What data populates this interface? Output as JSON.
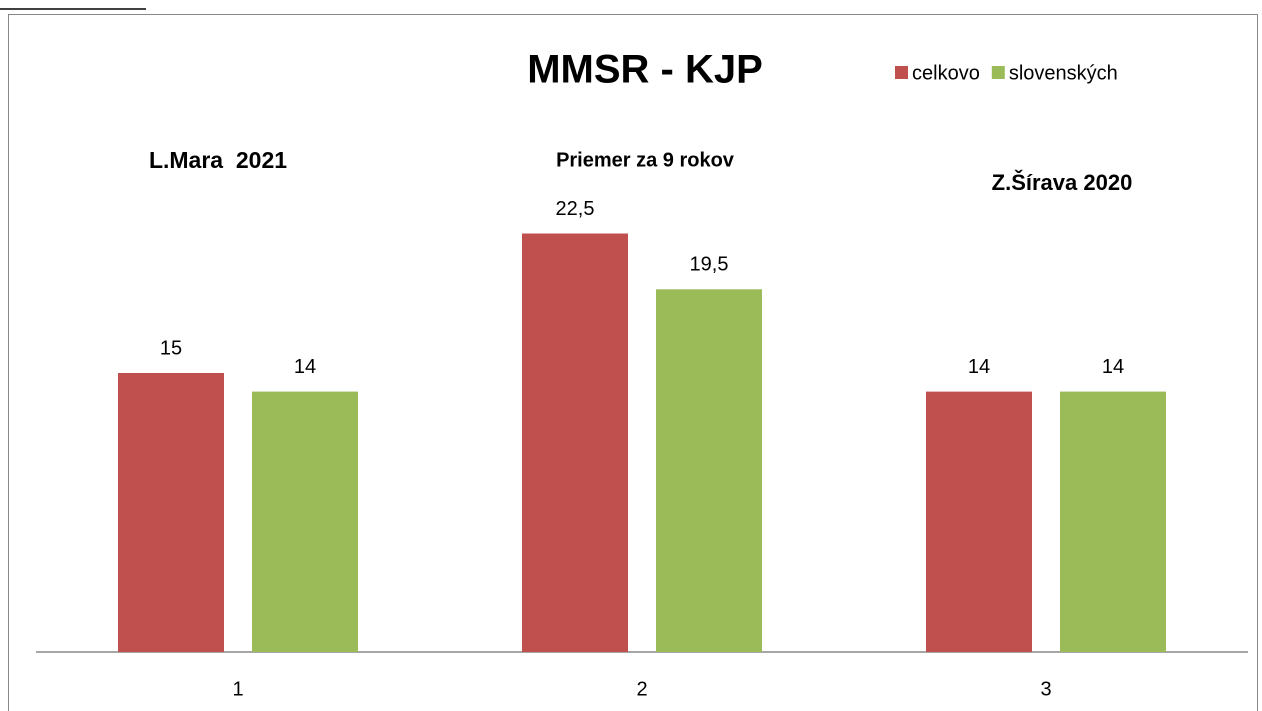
{
  "chart_data": {
    "type": "bar",
    "title": "MMSR - KJP",
    "categories": [
      "1",
      "2",
      "3"
    ],
    "series": [
      {
        "name": "celkovo",
        "color": "#c0504d",
        "values": [
          15,
          22.5,
          14
        ],
        "value_labels": [
          "15",
          "22,5",
          "14"
        ]
      },
      {
        "name": "slovenských",
        "color": "#9bbb59",
        "values": [
          14,
          19.5,
          14
        ],
        "value_labels": [
          "14",
          "19,5",
          "14"
        ]
      }
    ],
    "annotations": [
      "L.Mara  2021",
      "Priemer za 9 rokov",
      "Z.Šírava 2020"
    ],
    "ylim": [
      0,
      30
    ],
    "legend": "top-right"
  }
}
